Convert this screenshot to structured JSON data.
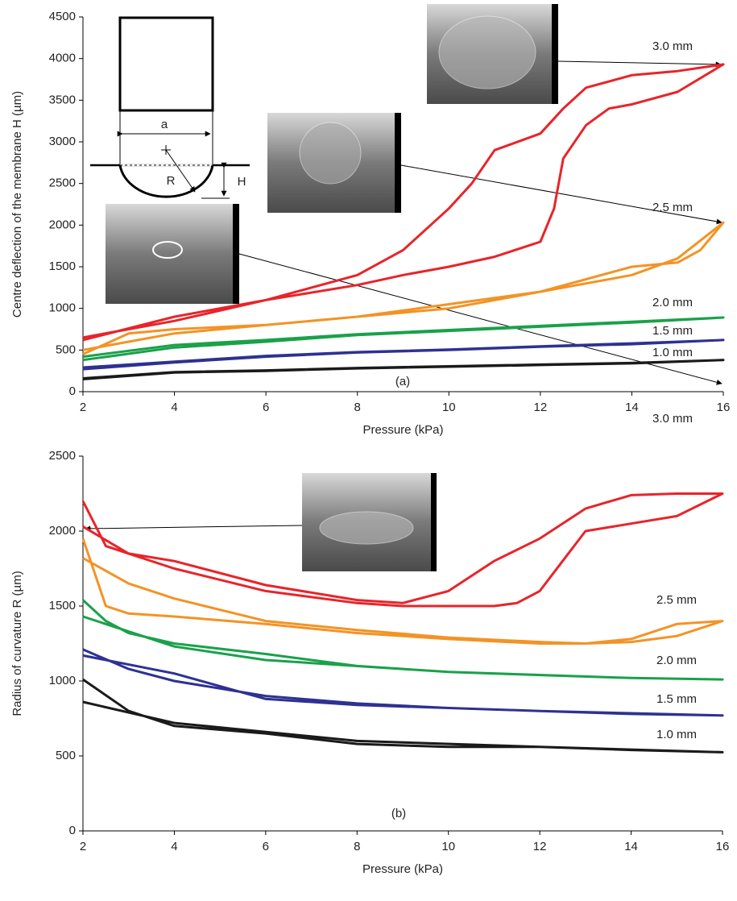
{
  "chart_data": [
    {
      "type": "line",
      "x_label": "Pressure (kPa)",
      "y_label": "Centre deflection of the membrane H (µm)",
      "annotation": "(a)",
      "diagram_labels": [
        "a",
        "R",
        "H"
      ],
      "xlim": [
        2,
        16
      ],
      "xticks": [
        2,
        4,
        6,
        8,
        10,
        12,
        14,
        16
      ],
      "ylim": [
        0,
        4500
      ],
      "yticks": [
        0,
        500,
        1000,
        1500,
        2000,
        2500,
        3000,
        3500,
        4000,
        4500
      ],
      "series": [
        {
          "name": "3.0 mm",
          "color": "#e8242a",
          "x": [
            2,
            4,
            6,
            8,
            9,
            10,
            11,
            12,
            12.3,
            12.5,
            13,
            13.5,
            14,
            15,
            16,
            15,
            14,
            13,
            12.5,
            12,
            11,
            10.5,
            10,
            9,
            8,
            7,
            6,
            4,
            2
          ],
          "values": [
            620,
            900,
            1100,
            1280,
            1400,
            1500,
            1620,
            1800,
            2200,
            2800,
            3200,
            3400,
            3450,
            3600,
            3930,
            3850,
            3800,
            3650,
            3400,
            3100,
            2900,
            2500,
            2200,
            1700,
            1400,
            1250,
            1100,
            850,
            650
          ]
        },
        {
          "name": "2.5 mm",
          "color": "#f39325",
          "x": [
            2,
            3,
            4,
            6,
            8,
            10,
            12,
            13,
            14,
            15,
            16,
            15.5,
            15,
            14,
            12,
            10,
            8,
            6,
            4,
            2
          ],
          "values": [
            450,
            700,
            750,
            800,
            900,
            1000,
            1200,
            1300,
            1400,
            1600,
            2030,
            1700,
            1550,
            1500,
            1200,
            1050,
            900,
            800,
            700,
            500
          ]
        },
        {
          "name": "2.0 mm",
          "color": "#1aa14a",
          "x": [
            2,
            4,
            6,
            8,
            10,
            12,
            14,
            16,
            14,
            12,
            10,
            8,
            6,
            4,
            2
          ],
          "values": [
            380,
            530,
            600,
            680,
            730,
            780,
            830,
            890,
            840,
            790,
            740,
            690,
            620,
            560,
            420
          ]
        },
        {
          "name": "1.5 mm",
          "color": "#2e3192",
          "x": [
            2,
            4,
            6,
            8,
            10,
            12,
            14,
            16,
            14,
            12,
            10,
            8,
            6,
            4,
            2
          ],
          "values": [
            270,
            350,
            420,
            470,
            500,
            540,
            570,
            620,
            580,
            545,
            505,
            475,
            430,
            360,
            290
          ]
        },
        {
          "name": "1.0 mm",
          "color": "#1a1a1a",
          "x": [
            2,
            4,
            6,
            8,
            10,
            12,
            14,
            16,
            14,
            12,
            10,
            8,
            6,
            4,
            2
          ],
          "values": [
            150,
            230,
            250,
            280,
            300,
            320,
            340,
            380,
            345,
            325,
            305,
            285,
            255,
            235,
            160
          ]
        }
      ]
    },
    {
      "type": "line",
      "x_label": "Pressure (kPa)",
      "y_label": "Radius of curvature R (µm)",
      "annotation": "(b)",
      "xlim": [
        2,
        16
      ],
      "xticks": [
        2,
        4,
        6,
        8,
        10,
        12,
        14,
        16
      ],
      "ylim": [
        0,
        2500
      ],
      "yticks": [
        0,
        500,
        1000,
        1500,
        2000,
        2500
      ],
      "series": [
        {
          "name": "3.0 mm",
          "color": "#e8242a",
          "x": [
            2,
            2.5,
            3,
            4,
            6,
            8,
            9,
            10,
            11,
            11.5,
            12,
            12.5,
            13,
            14,
            15,
            16,
            15,
            14,
            13,
            12,
            11,
            10,
            9,
            8,
            6,
            4,
            3,
            2
          ],
          "values": [
            2200,
            1900,
            1850,
            1750,
            1600,
            1520,
            1500,
            1500,
            1500,
            1520,
            1600,
            1800,
            2000,
            2050,
            2100,
            2250,
            2250,
            2240,
            2150,
            1950,
            1800,
            1600,
            1520,
            1540,
            1640,
            1800,
            1850,
            2030
          ]
        },
        {
          "name": "2.5 mm",
          "color": "#f39325",
          "x": [
            2,
            2.5,
            3,
            4,
            6,
            8,
            10,
            12,
            13,
            14,
            15,
            16,
            15,
            14,
            13,
            12,
            10,
            8,
            6,
            4,
            3,
            2
          ],
          "values": [
            1950,
            1500,
            1450,
            1430,
            1380,
            1320,
            1280,
            1250,
            1250,
            1260,
            1300,
            1400,
            1380,
            1280,
            1250,
            1260,
            1290,
            1340,
            1400,
            1550,
            1650,
            1820
          ]
        },
        {
          "name": "2.0 mm",
          "color": "#1aa14a",
          "x": [
            2,
            2.5,
            3,
            4,
            6,
            8,
            10,
            12,
            14,
            16,
            14,
            10,
            6,
            4,
            2
          ],
          "values": [
            1540,
            1400,
            1320,
            1250,
            1180,
            1100,
            1060,
            1040,
            1020,
            1010,
            1020,
            1060,
            1140,
            1230,
            1430
          ]
        },
        {
          "name": "1.5 mm",
          "color": "#2e3192",
          "x": [
            2,
            3,
            4,
            6,
            8,
            10,
            12,
            14,
            16,
            12,
            8,
            6,
            4,
            2
          ],
          "values": [
            1210,
            1080,
            1000,
            900,
            850,
            820,
            800,
            780,
            770,
            800,
            840,
            880,
            1050,
            1170
          ]
        },
        {
          "name": "1.0 mm",
          "color": "#1a1a1a",
          "x": [
            2,
            3,
            4,
            6,
            8,
            10,
            12,
            14,
            16,
            12,
            8,
            6,
            4,
            2
          ],
          "values": [
            1010,
            800,
            700,
            650,
            580,
            560,
            560,
            540,
            525,
            560,
            600,
            660,
            720,
            860
          ]
        }
      ]
    }
  ]
}
